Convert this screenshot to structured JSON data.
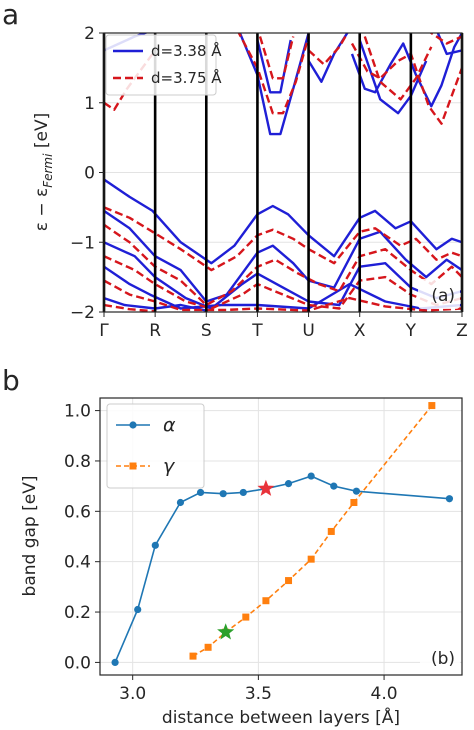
{
  "figure": {
    "panel_a_letter": "a",
    "panel_b_letter": "b"
  },
  "chart_data": [
    {
      "type": "line",
      "panel_tag": "(a)",
      "xlabel": "",
      "ylabel": "ε − ε_Fermi [eV]",
      "ylabel_parts": {
        "main": "ε − ε",
        "sub": "Fermi",
        "unit": " [eV]"
      },
      "ylim": [
        -2,
        2
      ],
      "yticks": [
        -2,
        -1,
        0,
        1,
        2
      ],
      "high_symmetry_points": [
        "Γ",
        "R",
        "S",
        "T",
        "U",
        "X",
        "Y",
        "Z"
      ],
      "grid": false,
      "legend": "top-left",
      "series_colors": [
        "#1f1fd6",
        "#d6161c"
      ],
      "series": [
        {
          "name": "d=3.38 Å",
          "style": "solid",
          "bands": [
            [
              [
                0,
                1.75
              ],
              [
                0.3,
                1.85
              ],
              [
                0.6,
                1.95
              ],
              [
                1.0,
                2.05
              ]
            ],
            [
              [
                2.6,
                2.1
              ],
              [
                3.0,
                1.4
              ],
              [
                3.25,
                0.55
              ],
              [
                3.45,
                0.55
              ],
              [
                3.7,
                1.2
              ],
              [
                4.0,
                2.0
              ]
            ],
            [
              [
                4.0,
                1.6
              ],
              [
                4.25,
                1.3
              ],
              [
                4.5,
                1.7
              ],
              [
                4.8,
                2.05
              ]
            ],
            [
              [
                4.85,
                1.7
              ],
              [
                5.1,
                1.2
              ],
              [
                5.3,
                1.15
              ],
              [
                5.6,
                1.55
              ],
              [
                5.85,
                1.85
              ],
              [
                6.1,
                1.4
              ],
              [
                6.4,
                0.95
              ],
              [
                6.6,
                1.25
              ],
              [
                6.85,
                1.8
              ],
              [
                7.0,
                2.0
              ]
            ],
            [
              [
                5.0,
                1.9
              ],
              [
                5.4,
                1.05
              ],
              [
                5.75,
                0.85
              ],
              [
                6.0,
                1.1
              ],
              [
                6.3,
                1.6
              ]
            ],
            [
              [
                6.5,
                2.05
              ],
              [
                6.7,
                1.7
              ],
              [
                7.0,
                1.75
              ]
            ],
            [
              [
                3.0,
                1.9
              ],
              [
                3.25,
                1.15
              ],
              [
                3.45,
                1.15
              ],
              [
                3.65,
                1.9
              ]
            ],
            [
              [
                0,
                -0.1
              ],
              [
                0.5,
                -0.35
              ],
              [
                0.95,
                -0.55
              ],
              [
                1.5,
                -1.0
              ],
              [
                2.1,
                -1.3
              ],
              [
                2.55,
                -1.05
              ],
              [
                3.0,
                -0.6
              ],
              [
                3.3,
                -0.48
              ],
              [
                3.6,
                -0.6
              ],
              [
                4.0,
                -0.9
              ],
              [
                4.5,
                -1.2
              ],
              [
                5.0,
                -0.65
              ],
              [
                5.3,
                -0.55
              ],
              [
                5.7,
                -0.8
              ],
              [
                6.0,
                -0.7
              ],
              [
                6.5,
                -1.1
              ],
              [
                6.8,
                -0.95
              ],
              [
                7.0,
                -1.0
              ]
            ],
            [
              [
                0,
                -0.55
              ],
              [
                0.5,
                -0.8
              ],
              [
                1.0,
                -1.2
              ],
              [
                1.5,
                -1.4
              ],
              [
                2.0,
                -1.85
              ],
              [
                2.4,
                -1.75
              ],
              [
                3.0,
                -1.15
              ],
              [
                3.3,
                -1.05
              ],
              [
                3.7,
                -1.3
              ],
              [
                4.0,
                -1.55
              ],
              [
                4.5,
                -1.65
              ],
              [
                5.0,
                -0.95
              ],
              [
                5.4,
                -0.85
              ],
              [
                5.9,
                -1.25
              ],
              [
                6.3,
                -1.5
              ],
              [
                6.7,
                -1.25
              ],
              [
                7.0,
                -1.4
              ]
            ],
            [
              [
                0,
                -1.0
              ],
              [
                0.6,
                -1.2
              ],
              [
                1.0,
                -1.5
              ],
              [
                1.6,
                -1.8
              ],
              [
                2.1,
                -1.95
              ],
              [
                2.7,
                -1.6
              ],
              [
                3.0,
                -1.45
              ],
              [
                3.5,
                -1.65
              ],
              [
                4.0,
                -1.85
              ],
              [
                4.6,
                -1.9
              ],
              [
                5.0,
                -1.35
              ],
              [
                5.5,
                -1.3
              ],
              [
                6.0,
                -1.65
              ],
              [
                6.5,
                -1.8
              ],
              [
                7.0,
                -1.7
              ]
            ],
            [
              [
                0,
                -1.35
              ],
              [
                0.5,
                -1.6
              ],
              [
                0.9,
                -1.75
              ],
              [
                1.5,
                -1.95
              ],
              [
                2.3,
                -1.9
              ],
              [
                3.0,
                -1.9
              ],
              [
                4.0,
                -1.95
              ],
              [
                4.8,
                -1.6
              ],
              [
                5.5,
                -1.85
              ],
              [
                6.2,
                -1.95
              ],
              [
                7.0,
                -1.9
              ]
            ],
            [
              [
                0,
                -1.8
              ],
              [
                0.4,
                -1.9
              ],
              [
                1.0,
                -1.95
              ],
              [
                1.5,
                -1.9
              ],
              [
                2.0,
                -1.98
              ]
            ]
          ]
        },
        {
          "name": "d=3.75 Å",
          "style": "dashed",
          "bands": [
            [
              [
                0,
                1.0
              ],
              [
                0.2,
                0.9
              ],
              [
                0.45,
                1.2
              ],
              [
                0.8,
                1.55
              ],
              [
                1.0,
                1.75
              ]
            ],
            [
              [
                2.6,
                2.05
              ],
              [
                3.0,
                1.5
              ],
              [
                3.3,
                0.85
              ],
              [
                3.5,
                0.85
              ],
              [
                3.75,
                1.3
              ],
              [
                4.0,
                1.95
              ]
            ],
            [
              [
                4.0,
                1.75
              ],
              [
                4.3,
                1.55
              ],
              [
                4.6,
                1.8
              ],
              [
                4.8,
                2.05
              ]
            ],
            [
              [
                4.85,
                1.85
              ],
              [
                5.15,
                1.45
              ],
              [
                5.4,
                1.35
              ],
              [
                5.75,
                1.6
              ],
              [
                6.0,
                1.7
              ],
              [
                6.35,
                0.95
              ],
              [
                6.6,
                0.7
              ],
              [
                6.85,
                1.2
              ],
              [
                7.0,
                1.5
              ]
            ],
            [
              [
                5.1,
                1.95
              ],
              [
                5.4,
                1.3
              ],
              [
                5.8,
                1.05
              ],
              [
                6.1,
                1.35
              ],
              [
                6.4,
                1.8
              ]
            ],
            [
              [
                6.3,
                2.05
              ],
              [
                6.7,
                1.85
              ],
              [
                7.0,
                1.95
              ]
            ],
            [
              [
                3.05,
                1.95
              ],
              [
                3.3,
                1.35
              ],
              [
                3.5,
                1.35
              ],
              [
                3.7,
                1.95
              ]
            ],
            [
              [
                0,
                -0.5
              ],
              [
                0.5,
                -0.65
              ],
              [
                0.95,
                -0.85
              ],
              [
                1.5,
                -1.1
              ],
              [
                2.1,
                -1.4
              ],
              [
                2.6,
                -1.2
              ],
              [
                3.0,
                -0.9
              ],
              [
                3.3,
                -0.82
              ],
              [
                3.7,
                -0.95
              ],
              [
                4.0,
                -1.1
              ],
              [
                4.5,
                -1.3
              ],
              [
                5.0,
                -0.85
              ],
              [
                5.3,
                -0.8
              ],
              [
                5.8,
                -1.05
              ],
              [
                6.1,
                -0.95
              ],
              [
                6.5,
                -1.25
              ],
              [
                6.8,
                -1.15
              ],
              [
                7.0,
                -1.2
              ]
            ],
            [
              [
                0,
                -0.75
              ],
              [
                0.5,
                -1.0
              ],
              [
                1.0,
                -1.35
              ],
              [
                1.5,
                -1.55
              ],
              [
                2.0,
                -1.9
              ],
              [
                2.5,
                -1.7
              ],
              [
                3.0,
                -1.35
              ],
              [
                3.35,
                -1.25
              ],
              [
                3.8,
                -1.45
              ],
              [
                4.2,
                -1.6
              ],
              [
                4.6,
                -1.7
              ],
              [
                5.0,
                -1.2
              ],
              [
                5.5,
                -1.1
              ],
              [
                6.0,
                -1.4
              ],
              [
                6.4,
                -1.6
              ],
              [
                6.8,
                -1.35
              ],
              [
                7.0,
                -1.5
              ]
            ],
            [
              [
                0,
                -1.2
              ],
              [
                0.6,
                -1.4
              ],
              [
                1.0,
                -1.6
              ],
              [
                1.6,
                -1.85
              ],
              [
                2.1,
                -1.95
              ],
              [
                2.7,
                -1.75
              ],
              [
                3.0,
                -1.6
              ],
              [
                3.5,
                -1.75
              ],
              [
                4.0,
                -1.9
              ],
              [
                4.6,
                -1.95
              ],
              [
                5.0,
                -1.55
              ],
              [
                5.5,
                -1.5
              ],
              [
                6.0,
                -1.75
              ],
              [
                6.5,
                -1.9
              ],
              [
                7.0,
                -1.8
              ]
            ],
            [
              [
                0,
                -1.55
              ],
              [
                0.5,
                -1.75
              ],
              [
                1.0,
                -1.85
              ],
              [
                1.5,
                -1.97
              ],
              [
                2.4,
                -1.97
              ],
              [
                3.0,
                -1.95
              ],
              [
                4.0,
                -1.98
              ],
              [
                4.8,
                -1.8
              ],
              [
                5.5,
                -1.92
              ],
              [
                6.3,
                -1.98
              ],
              [
                7.0,
                -1.95
              ]
            ],
            [
              [
                0,
                -1.9
              ],
              [
                0.5,
                -1.96
              ],
              [
                1.0,
                -1.99
              ]
            ]
          ]
        }
      ]
    },
    {
      "type": "line",
      "panel_tag": "(b)",
      "xlabel": "distance between layers [Å]",
      "ylabel": "band gap [eV]",
      "xlim": [
        2.87,
        4.31
      ],
      "ylim": [
        -0.05,
        1.05
      ],
      "xticks": [
        3.0,
        3.5,
        4.0
      ],
      "yticks": [
        0.0,
        0.2,
        0.4,
        0.6,
        0.8,
        1.0
      ],
      "grid": true,
      "legend": "top-left",
      "series": [
        {
          "name": "α",
          "color": "#1f77b4",
          "marker": "circle",
          "style": "solid",
          "x": [
            2.93,
            3.02,
            3.09,
            3.19,
            3.27,
            3.36,
            3.44,
            3.53,
            3.62,
            3.71,
            3.8,
            3.89,
            4.26
          ],
          "y": [
            0.0,
            0.21,
            0.465,
            0.635,
            0.675,
            0.67,
            0.675,
            0.69,
            0.71,
            0.74,
            0.7,
            0.68,
            0.65
          ]
        },
        {
          "name": "γ",
          "color": "#ff7f0e",
          "marker": "square",
          "style": "dashed",
          "x": [
            3.24,
            3.3,
            3.37,
            3.45,
            3.53,
            3.62,
            3.71,
            3.79,
            3.88,
            4.19
          ],
          "y": [
            0.025,
            0.06,
            0.12,
            0.18,
            0.245,
            0.325,
            0.41,
            0.52,
            0.635,
            1.02
          ]
        }
      ],
      "highlight_points": [
        {
          "x": 3.53,
          "y": 0.69,
          "color": "#e8333b",
          "marker": "star"
        },
        {
          "x": 3.37,
          "y": 0.12,
          "color": "#2ca02c",
          "marker": "star"
        }
      ]
    }
  ]
}
